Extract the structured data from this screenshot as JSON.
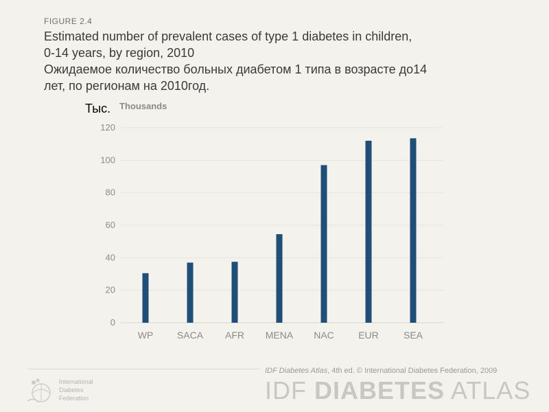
{
  "header": {
    "figure_label": "FIGURE  2.4",
    "title_en_line1": "Estimated number  of prevalent cases of type 1 diabetes in children,",
    "title_en_line2": "0-14 years, by region, 2010",
    "title_ru_line1": "Ожидаемое количество больных диабетом 1 типа в возрасте до14",
    "title_ru_line2": "лет, по регионам на 2010год."
  },
  "chart_data": {
    "type": "bar",
    "unit_ru": "Тыс.",
    "ylabel": "Thousands",
    "categories": [
      "WP",
      "SACA",
      "AFR",
      "MENA",
      "NAC",
      "EUR",
      "SEA"
    ],
    "values": [
      30.5,
      37,
      37.5,
      54.5,
      97,
      112,
      113.5
    ],
    "ylim": [
      0,
      120
    ],
    "yticks": [
      0,
      20,
      40,
      60,
      80,
      100,
      120
    ],
    "grid": true,
    "bar_color": "#1f4e79"
  },
  "footer": {
    "org_line1": "International",
    "org_line2": "Diabetes",
    "org_line3": "Federation",
    "credit_italic": "IDF Diabetes Atlas",
    "credit_rest": ", 4th ed.  © International Diabetes Federation, 2009",
    "wordmark_light_1": "IDF ",
    "wordmark_bold": "DIABETES",
    "wordmark_light_2": " ATLAS"
  }
}
